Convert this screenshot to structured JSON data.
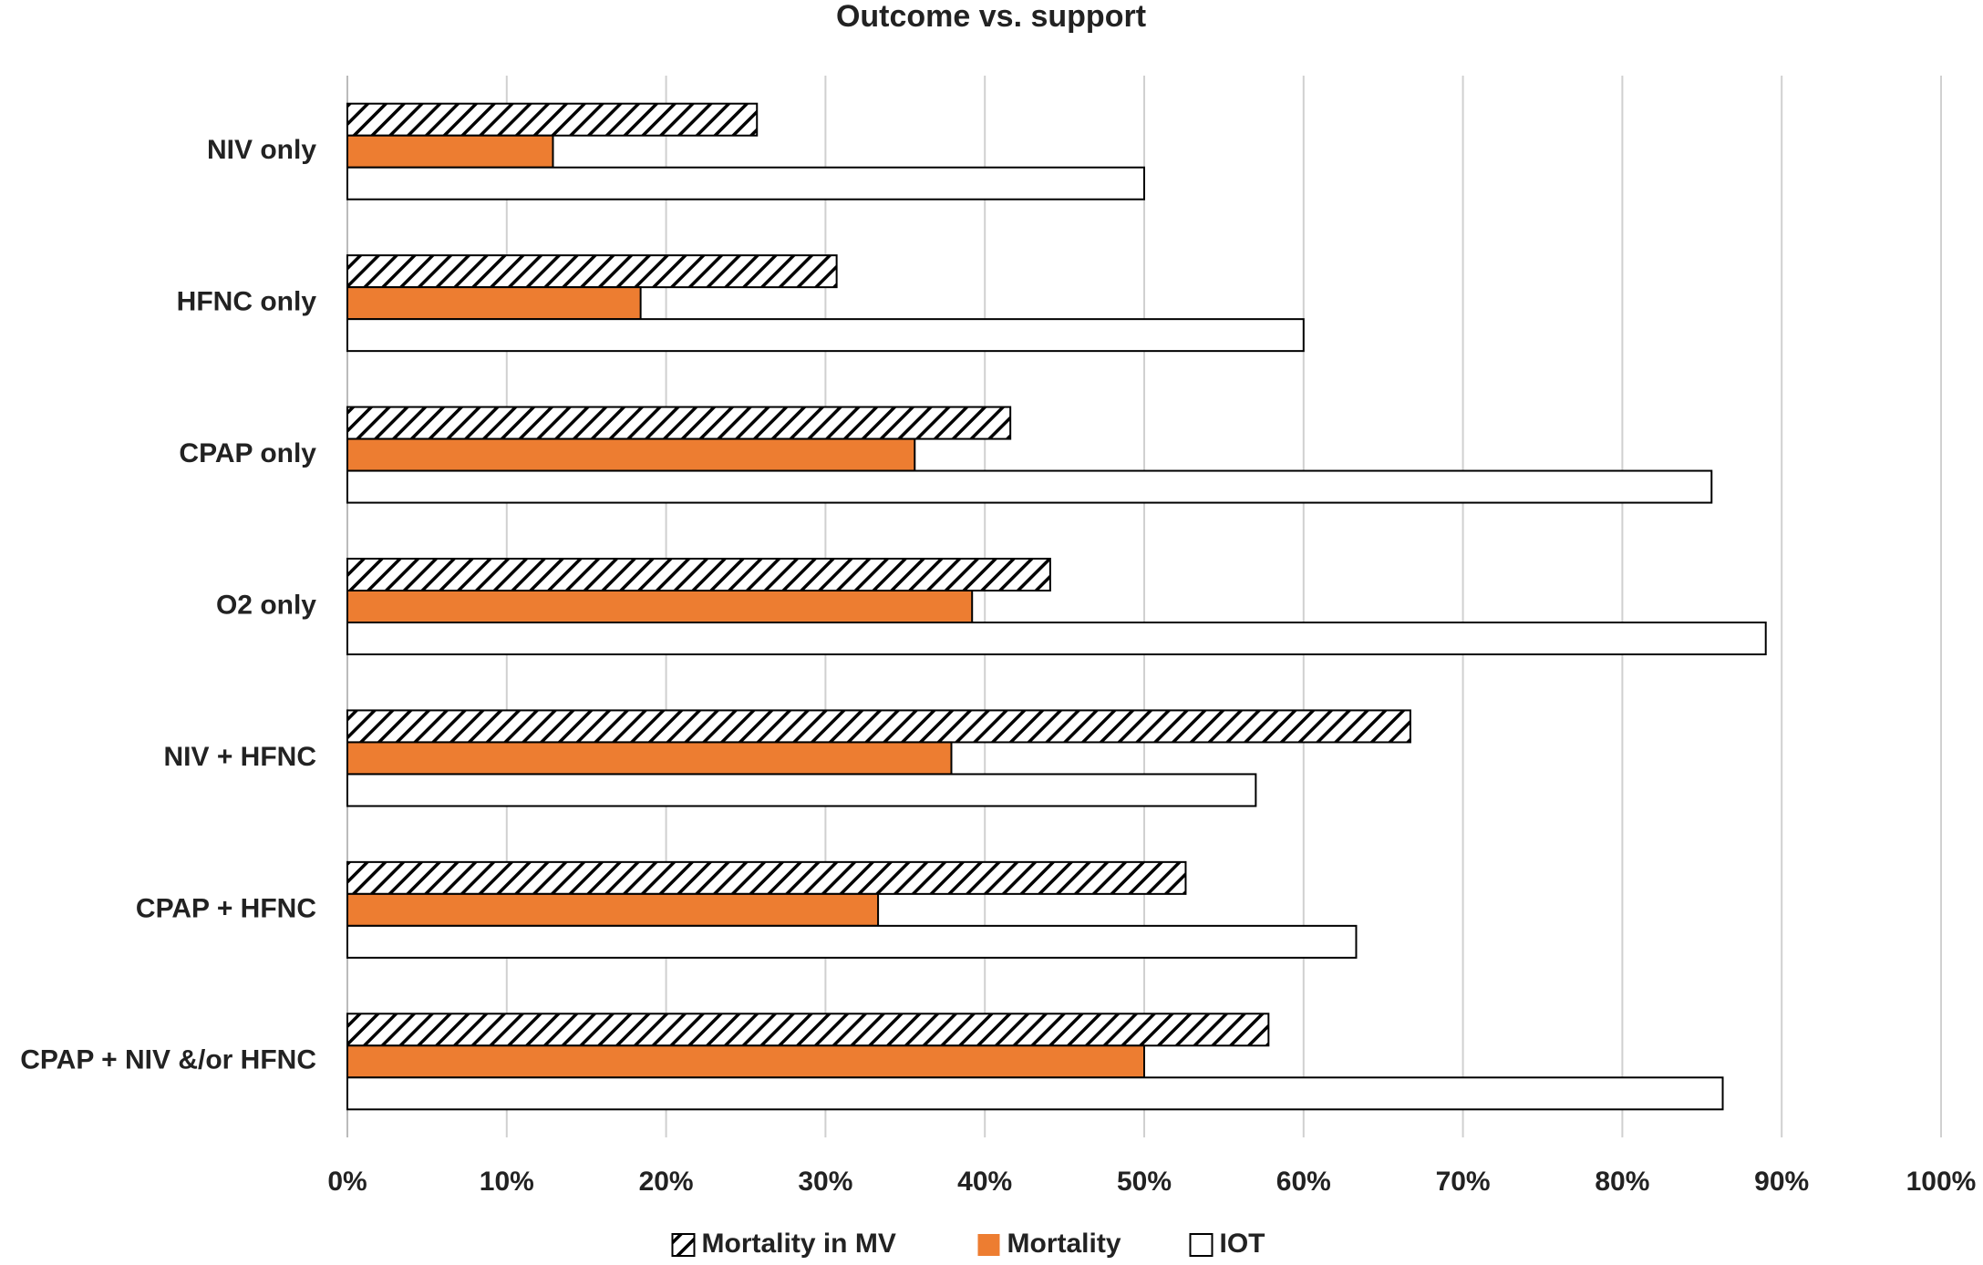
{
  "chart_data": {
    "type": "bar",
    "orientation": "horizontal",
    "title": "Outcome vs. support",
    "categories": [
      "NIV only",
      "HFNC only",
      "CPAP only",
      "O2 only",
      "NIV + HFNC",
      "CPAP + HFNC",
      "CPAP + NIV &/or HFNC"
    ],
    "series": [
      {
        "name": "Mortality in MV",
        "color": "#000000",
        "hatch": true,
        "values": [
          25.7,
          30.7,
          41.6,
          44.1,
          66.7,
          52.6,
          57.8
        ]
      },
      {
        "name": "Mortality",
        "color": "#ed7d31",
        "values": [
          12.9,
          18.4,
          35.6,
          39.2,
          37.9,
          33.3,
          50
        ]
      },
      {
        "name": "IOT",
        "color": "#ffffff",
        "values": [
          50,
          60,
          85.6,
          89,
          57,
          63.3,
          86.3
        ]
      }
    ],
    "xlim": [
      0,
      100
    ],
    "xticks": [
      {
        "value": 0,
        "label": "0%"
      },
      {
        "value": 10,
        "label": "10%"
      },
      {
        "value": 20,
        "label": "20%"
      },
      {
        "value": 30,
        "label": "30%"
      },
      {
        "value": 40,
        "label": "40%"
      },
      {
        "value": 50,
        "label": "50%"
      },
      {
        "value": 60,
        "label": "60%"
      },
      {
        "value": 70,
        "label": "70%"
      },
      {
        "value": 80,
        "label": "80%"
      },
      {
        "value": 90,
        "label": "90%"
      },
      {
        "value": 100,
        "label": "100%"
      }
    ],
    "grid": true,
    "legend": "bottom"
  }
}
